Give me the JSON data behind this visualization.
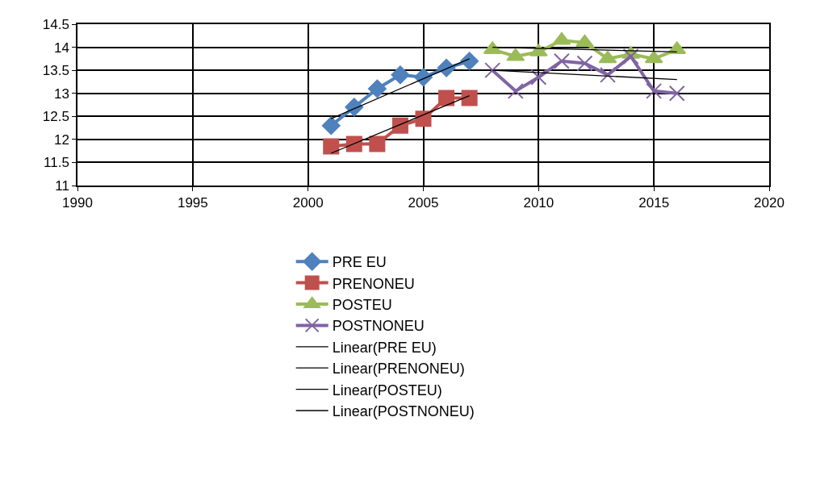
{
  "chart_data": {
    "type": "line",
    "xlim": [
      1990,
      2020
    ],
    "xticks": [
      1990,
      1995,
      2000,
      2005,
      2010,
      2015,
      2020
    ],
    "ylim": [
      11,
      14.5
    ],
    "yticks": [
      11,
      11.5,
      12,
      12.5,
      13,
      13.5,
      14,
      14.5
    ],
    "grid": true,
    "legend": "bottom",
    "series": [
      {
        "name": "PRE EU",
        "color": "#4f81bd",
        "marker": "diamond",
        "x": [
          2001,
          2002,
          2003,
          2004,
          2005,
          2006,
          2007
        ],
        "values": [
          12.3,
          12.7,
          13.1,
          13.4,
          13.35,
          13.55,
          13.7
        ]
      },
      {
        "name": "PRENONEU",
        "color": "#c0504d",
        "marker": "square",
        "x": [
          2001,
          2002,
          2003,
          2004,
          2005,
          2006,
          2007
        ],
        "values": [
          11.85,
          11.9,
          11.9,
          12.3,
          12.45,
          12.9,
          12.9
        ]
      },
      {
        "name": "POSTEU",
        "color": "#9bbb59",
        "marker": "triangle",
        "x": [
          2008,
          2009,
          2010,
          2011,
          2012,
          2013,
          2014,
          2015,
          2016
        ],
        "values": [
          13.95,
          13.8,
          13.9,
          14.15,
          14.1,
          13.75,
          13.85,
          13.75,
          13.95
        ]
      },
      {
        "name": "POSTNONEU",
        "color": "#8064a2",
        "marker": "cross",
        "x": [
          2008,
          2009,
          2010,
          2011,
          2012,
          2013,
          2014,
          2015,
          2016
        ],
        "values": [
          13.5,
          13.05,
          13.35,
          13.7,
          13.65,
          13.4,
          13.8,
          13.05,
          13.0
        ]
      },
      {
        "name": "Linear(PRE EU)",
        "type": "line",
        "color": "#000000",
        "marker": "none",
        "x": [
          2001,
          2007
        ],
        "values": [
          12.45,
          13.75
        ]
      },
      {
        "name": "Linear(PRENONEU)",
        "type": "line",
        "color": "#000000",
        "marker": "none",
        "x": [
          2001,
          2007
        ],
        "values": [
          11.7,
          12.95
        ]
      },
      {
        "name": "Linear(POSTEU)",
        "type": "line",
        "color": "#000000",
        "marker": "none",
        "x": [
          2008,
          2016
        ],
        "values": [
          14.0,
          13.9
        ]
      },
      {
        "name": "Linear(POSTNONEU)",
        "type": "line",
        "color": "#000000",
        "marker": "none",
        "x": [
          2008,
          2016
        ],
        "values": [
          13.5,
          13.3
        ]
      }
    ]
  }
}
